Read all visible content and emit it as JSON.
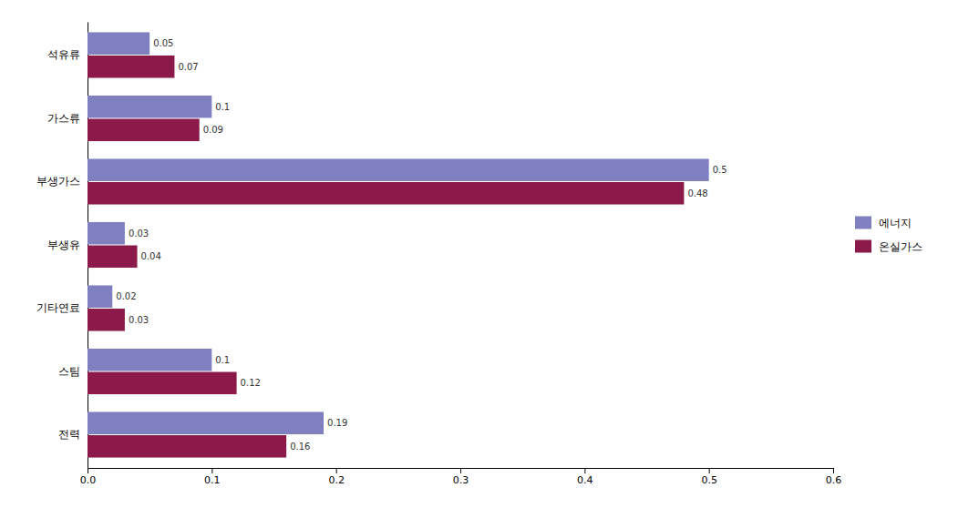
{
  "chart_data": {
    "type": "bar",
    "orientation": "horizontal",
    "categories": [
      "석유류",
      "가스류",
      "부생가스",
      "부생유",
      "기타연료",
      "스팀",
      "전력"
    ],
    "series": [
      {
        "name": "에너지",
        "color": "#8080C0",
        "values": [
          0.05,
          0.1,
          0.5,
          0.03,
          0.02,
          0.1,
          0.19
        ]
      },
      {
        "name": "온실가스",
        "color": "#8B1A4A",
        "values": [
          0.07,
          0.09,
          0.48,
          0.04,
          0.03,
          0.12,
          0.16
        ]
      }
    ],
    "xlim": [
      0.0,
      0.6
    ],
    "xticks": [
      {
        "value": 0.0,
        "label": "0.0"
      },
      0.1,
      0.2,
      0.3,
      0.4,
      0.5,
      0.6
    ],
    "data_labels": true,
    "legend": "right"
  }
}
